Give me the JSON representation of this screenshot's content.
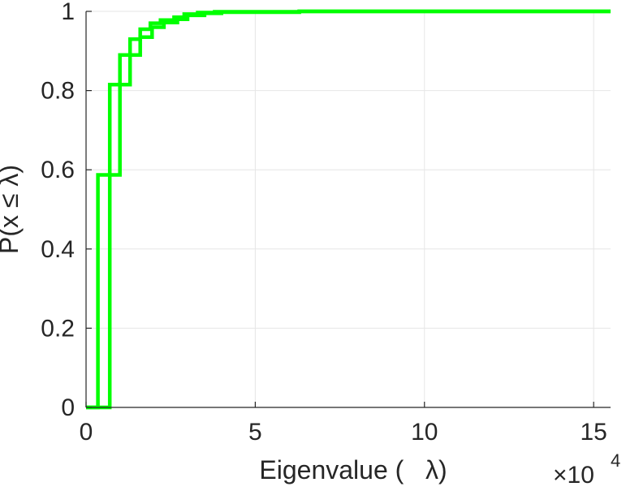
{
  "chart_data": {
    "type": "line",
    "xlabel": "Eigenvalue (   λ)",
    "ylabel": "P(x ≤ λ)",
    "x_exponent_label": "×10",
    "x_exponent": "4",
    "xlim": [
      0,
      15.5
    ],
    "ylim": [
      0,
      1
    ],
    "x_ticks": [
      0,
      5,
      10,
      15
    ],
    "x_tick_labels": [
      "0",
      "5",
      "10",
      "15"
    ],
    "y_ticks": [
      0,
      0.2,
      0.4,
      0.6,
      0.8,
      1
    ],
    "y_tick_labels": [
      "0",
      "0.2",
      "0.4",
      "0.6",
      "0.8",
      "1"
    ],
    "grid": true,
    "series": [
      {
        "color": "#00ff00",
        "step": true,
        "x": [
          0,
          0.35,
          0.35,
          1.0,
          1.0,
          1.3,
          1.3,
          1.6,
          1.6,
          1.9,
          1.9,
          2.2,
          2.2,
          2.6,
          2.6,
          2.9,
          2.9,
          3.3,
          3.3,
          3.8,
          3.8,
          6.3,
          6.3,
          15.5
        ],
        "y": [
          0,
          0,
          0.587,
          0.587,
          0.89,
          0.89,
          0.93,
          0.93,
          0.955,
          0.955,
          0.97,
          0.97,
          0.978,
          0.978,
          0.985,
          0.985,
          0.993,
          0.993,
          0.997,
          0.997,
          0.999,
          0.999,
          1.0,
          1.0
        ]
      },
      {
        "color": "#00ff00",
        "step": true,
        "x": [
          0,
          0.7,
          0.7,
          1.0,
          1.0,
          1.3,
          1.3,
          1.6,
          1.6,
          1.95,
          1.95,
          2.3,
          2.3,
          2.7,
          2.7,
          3.0,
          3.0,
          3.5,
          3.5,
          4.0,
          4.0,
          6.3,
          6.3,
          15.5
        ],
        "y": [
          0,
          0,
          0.815,
          0.815,
          0.815,
          0.815,
          0.89,
          0.89,
          0.935,
          0.935,
          0.96,
          0.96,
          0.972,
          0.972,
          0.98,
          0.98,
          0.99,
          0.99,
          0.995,
          0.995,
          0.998,
          0.998,
          1.0,
          1.0
        ]
      }
    ]
  }
}
